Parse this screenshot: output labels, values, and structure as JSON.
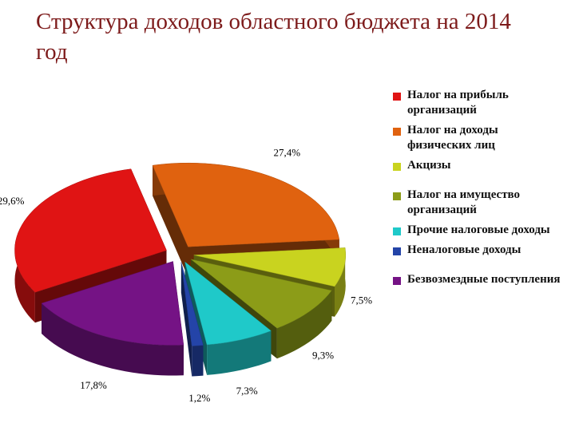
{
  "chart_data": {
    "type": "pie",
    "title": "Структура доходов областного бюджета на 2014 год",
    "categories": [
      "Налог на прибыль организаций",
      "Налог на доходы физических лиц",
      "Акцизы",
      "Налог на имущество организаций",
      "Прочие налоговые доходы",
      "Неналоговые доходы",
      "Безвозмездные поступления"
    ],
    "values": [
      29.6,
      27.4,
      7.5,
      9.3,
      7.3,
      1.2,
      17.8
    ],
    "value_labels": [
      "29,6%",
      "27,4%",
      "7,5%",
      "9,3%",
      "7,3%",
      "1,2%",
      "17,8%"
    ],
    "colors": [
      "#e01414",
      "#e0620f",
      "#c9d31f",
      "#8c9c18",
      "#1fc9c9",
      "#2444a8",
      "#751385"
    ]
  }
}
